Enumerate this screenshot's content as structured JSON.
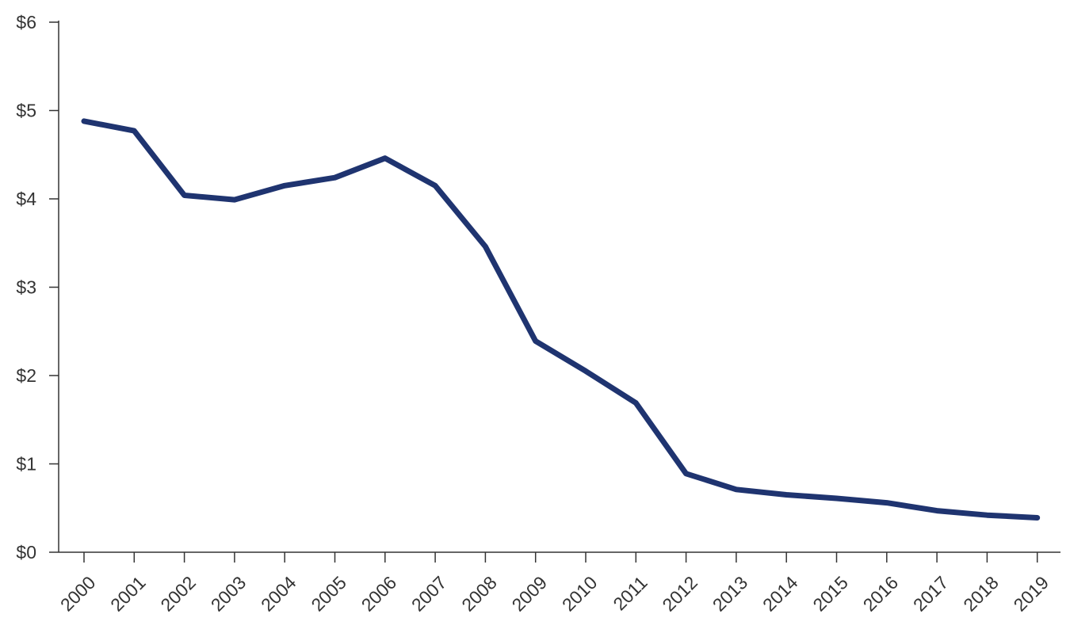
{
  "chart_data": {
    "type": "line",
    "title": "",
    "xlabel": "",
    "ylabel": "",
    "categories": [
      "2000",
      "2001",
      "2002",
      "2003",
      "2004",
      "2005",
      "2006",
      "2007",
      "2008",
      "2009",
      "2010",
      "2011",
      "2012",
      "2013",
      "2014",
      "2015",
      "2016",
      "2017",
      "2018",
      "2019"
    ],
    "series": [
      {
        "name": "",
        "color": "#1f3470",
        "values": [
          4.88,
          4.77,
          4.04,
          3.99,
          4.15,
          4.24,
          4.46,
          4.15,
          3.46,
          2.39,
          2.05,
          1.69,
          0.89,
          0.71,
          0.65,
          0.61,
          0.56,
          0.47,
          0.42,
          0.39
        ]
      }
    ],
    "ylim": [
      0,
      6
    ],
    "yticks": [
      0,
      1,
      2,
      3,
      4,
      5,
      6
    ],
    "ytick_labels": [
      "$0",
      "$1",
      "$2",
      "$3",
      "$4",
      "$5",
      "$6"
    ],
    "grid": false,
    "legend": "none"
  }
}
